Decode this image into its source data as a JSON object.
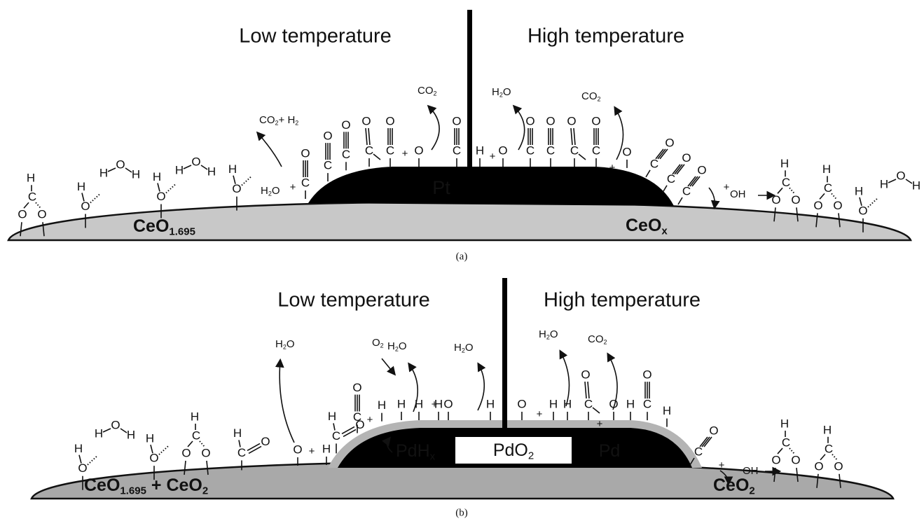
{
  "atoms": {
    "H": "H",
    "O": "O",
    "C": "C",
    "plus": "+"
  },
  "panels": [
    {
      "caption": "(a)",
      "left_title": "Low temperature",
      "right_title": "High temperature",
      "metal_labels": [
        {
          "parts": [
            "Pt"
          ]
        }
      ],
      "supports": [
        {
          "parts": [
            "CeO",
            "1.695"
          ]
        },
        {
          "parts": [
            "CeO",
            "x"
          ]
        }
      ],
      "species": [
        {
          "parts": [
            "CO",
            "2",
            "+ H",
            "2"
          ]
        },
        {
          "parts": [
            "CO",
            "2"
          ]
        },
        {
          "parts": [
            "H",
            "2",
            "O"
          ]
        },
        {
          "parts": [
            "CO",
            "2"
          ]
        },
        {
          "parts": [
            "H",
            "2",
            "O"
          ]
        },
        {
          "parts": [
            "OH"
          ]
        }
      ]
    },
    {
      "caption": "(b)",
      "left_title": "Low temperature",
      "right_title": "High temperature",
      "metal_labels": [
        {
          "parts": [
            "PdH",
            "x"
          ]
        },
        {
          "parts": [
            "PdO",
            "2"
          ]
        },
        {
          "parts": [
            "Pd"
          ]
        }
      ],
      "supports": [
        {
          "parts": [
            "CeO",
            "1.695",
            " + CeO",
            "2"
          ]
        },
        {
          "parts": [
            "CeO",
            "2"
          ]
        }
      ],
      "species": [
        {
          "parts": [
            "H",
            "2",
            "O"
          ]
        },
        {
          "parts": [
            "O",
            "2"
          ]
        },
        {
          "parts": [
            "H",
            "2",
            "O"
          ]
        },
        {
          "parts": [
            "H",
            "2",
            "O"
          ]
        },
        {
          "parts": [
            "H",
            "2",
            "O"
          ]
        },
        {
          "parts": [
            "CO",
            "2"
          ]
        },
        {
          "parts": [
            "OH"
          ]
        }
      ]
    }
  ]
}
